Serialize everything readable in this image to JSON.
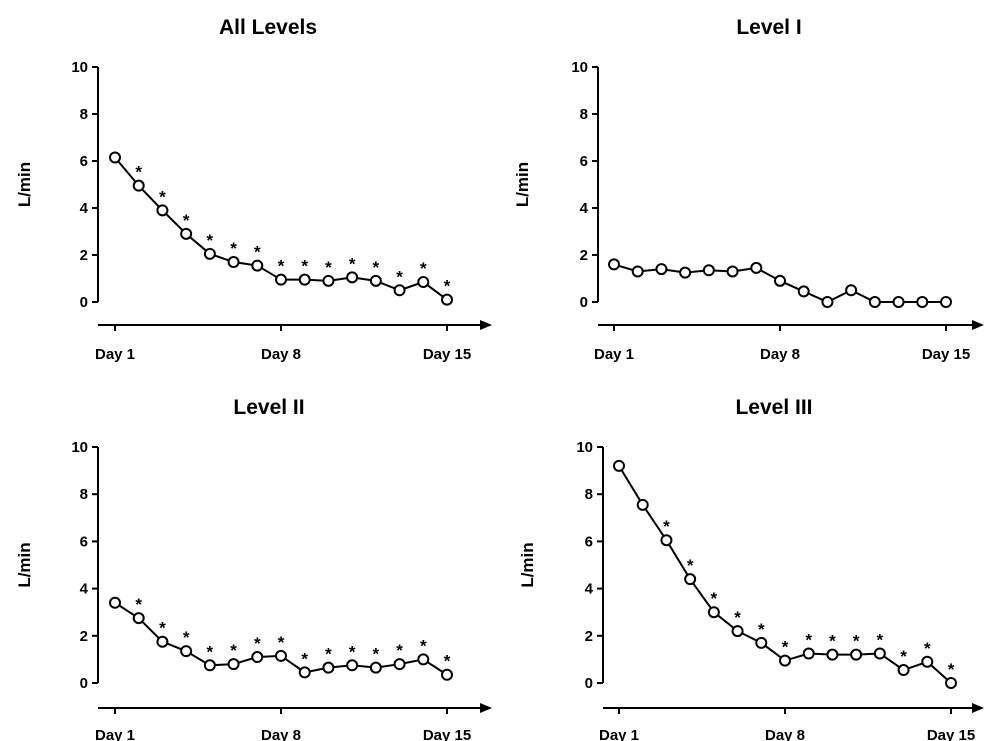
{
  "chart_data": [
    {
      "type": "line",
      "title": "All Levels",
      "xlabel": "",
      "ylabel": "L/min",
      "x": [
        1,
        2,
        3,
        4,
        5,
        6,
        7,
        8,
        9,
        10,
        11,
        12,
        13,
        14,
        15
      ],
      "x_tick_labels": [
        {
          "x": 1,
          "label": "Day 1"
        },
        {
          "x": 8,
          "label": "Day 8"
        },
        {
          "x": 15,
          "label": "Day 15"
        }
      ],
      "ylim": [
        0,
        10
      ],
      "y_ticks": [
        0,
        2,
        4,
        6,
        8,
        10
      ],
      "series": [
        {
          "values": [
            6.15,
            4.95,
            3.9,
            2.9,
            2.05,
            1.7,
            1.55,
            0.95,
            0.95,
            0.9,
            1.05,
            0.9,
            0.5,
            0.85,
            0.1
          ],
          "significance_markers": [
            "",
            "*",
            "*",
            "*",
            "*",
            "*",
            "*",
            "*",
            "*",
            "*",
            "*",
            "*",
            "*",
            "*",
            "*"
          ]
        }
      ],
      "grid": false,
      "x_axis_arrow": true
    },
    {
      "type": "line",
      "title": "Level I",
      "xlabel": "",
      "ylabel": "L/min",
      "x": [
        1,
        2,
        3,
        4,
        5,
        6,
        7,
        8,
        9,
        10,
        11,
        12,
        13,
        14,
        15
      ],
      "x_tick_labels": [
        {
          "x": 1,
          "label": "Day 1"
        },
        {
          "x": 8,
          "label": "Day 8"
        },
        {
          "x": 15,
          "label": "Day 15"
        }
      ],
      "ylim": [
        0,
        10
      ],
      "y_ticks": [
        0,
        2,
        4,
        6,
        8,
        10
      ],
      "series": [
        {
          "values": [
            1.6,
            1.3,
            1.4,
            1.25,
            1.35,
            1.3,
            1.45,
            0.9,
            0.45,
            0.0,
            0.5,
            0.0,
            0.0,
            0.0,
            0.0
          ],
          "significance_markers": [
            "",
            "",
            "",
            "",
            "",
            "",
            "",
            "",
            "",
            "",
            "",
            "",
            "",
            "",
            ""
          ]
        }
      ],
      "grid": false,
      "x_axis_arrow": true
    },
    {
      "type": "line",
      "title": "Level II",
      "xlabel": "",
      "ylabel": "L/min",
      "x": [
        1,
        2,
        3,
        4,
        5,
        6,
        7,
        8,
        9,
        10,
        11,
        12,
        13,
        14,
        15
      ],
      "x_tick_labels": [
        {
          "x": 1,
          "label": "Day 1"
        },
        {
          "x": 8,
          "label": "Day 8"
        },
        {
          "x": 15,
          "label": "Day 15"
        }
      ],
      "ylim": [
        0,
        10
      ],
      "y_ticks": [
        0,
        2,
        4,
        6,
        8,
        10
      ],
      "series": [
        {
          "values": [
            3.4,
            2.75,
            1.75,
            1.35,
            0.75,
            0.8,
            1.1,
            1.15,
            0.45,
            0.65,
            0.75,
            0.65,
            0.8,
            1.0,
            0.35
          ],
          "significance_markers": [
            "",
            "*",
            "*",
            "*",
            "*",
            "*",
            "*",
            "*",
            "*",
            "*",
            "*",
            "*",
            "*",
            "*",
            "*"
          ]
        }
      ],
      "grid": false,
      "x_axis_arrow": true
    },
    {
      "type": "line",
      "title": "Level III",
      "xlabel": "",
      "ylabel": "L/min",
      "x": [
        1,
        2,
        3,
        4,
        5,
        6,
        7,
        8,
        9,
        10,
        11,
        12,
        13,
        14,
        15
      ],
      "x_tick_labels": [
        {
          "x": 1,
          "label": "Day 1"
        },
        {
          "x": 8,
          "label": "Day 8"
        },
        {
          "x": 15,
          "label": "Day 15"
        }
      ],
      "ylim": [
        0,
        10
      ],
      "y_ticks": [
        0,
        2,
        4,
        6,
        8,
        10
      ],
      "series": [
        {
          "values": [
            9.2,
            7.55,
            6.05,
            4.4,
            3.0,
            2.2,
            1.7,
            0.95,
            1.25,
            1.2,
            1.2,
            1.25,
            0.55,
            0.9,
            0.0
          ],
          "significance_markers": [
            "",
            "",
            "*",
            "*",
            "*",
            "*",
            "*",
            "*",
            "*",
            "*",
            "*",
            "*",
            "*",
            "*",
            "*"
          ]
        }
      ],
      "grid": false,
      "x_axis_arrow": true
    }
  ],
  "style": {
    "line_color": "#000000",
    "marker_fill": "#ffffff",
    "marker": "open-circle",
    "background": "#ffffff"
  }
}
